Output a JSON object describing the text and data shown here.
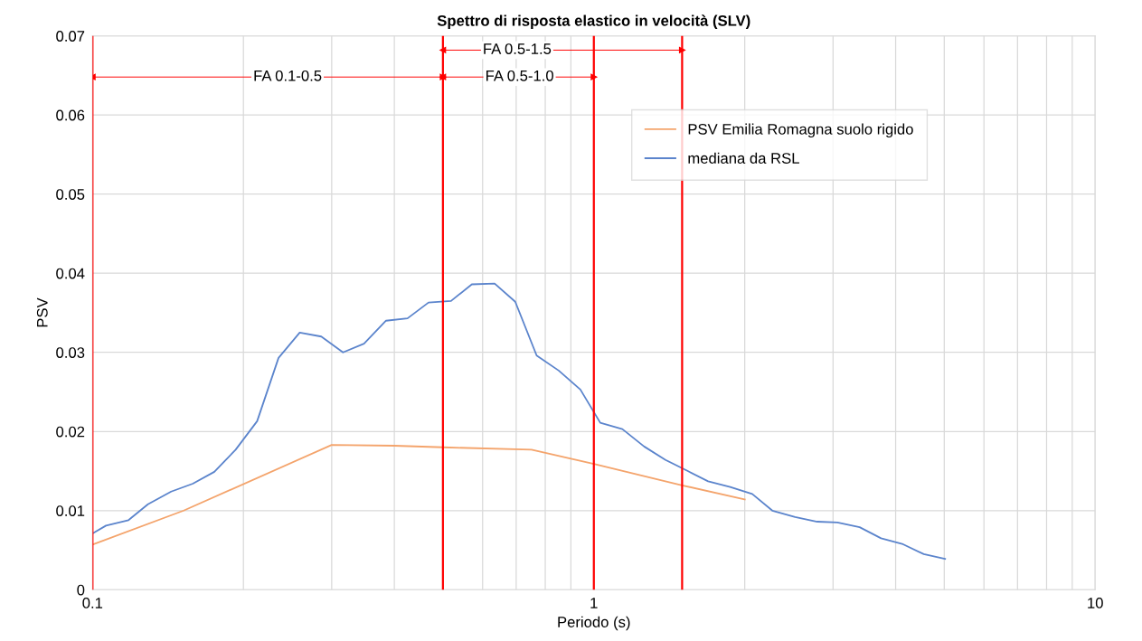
{
  "chart_data": {
    "type": "line",
    "title": "Spettro di risposta elastico in velocità (SLV)",
    "xlabel": "Periodo (s)",
    "ylabel": "PSV",
    "log": "x",
    "xlim": [
      0.1,
      10
    ],
    "xticks": [
      0.1,
      1,
      10
    ],
    "ylim": [
      0,
      0.07
    ],
    "yticks": [
      0,
      0.01,
      0.02,
      0.03,
      0.04,
      0.05,
      0.06,
      0.07
    ],
    "grid": true,
    "legend": "top right",
    "marker": "none",
    "line_style": "solid",
    "series": [
      {
        "name": "PSV Emilia Romagna suolo rigido",
        "color": "#f4a46c",
        "x": [
          0.1,
          0.152,
          0.3,
          0.4,
          0.5,
          0.751,
          1.0,
          1.5,
          2.0
        ],
        "values": [
          0.0057,
          0.01,
          0.0183,
          0.0182,
          0.018,
          0.0177,
          0.0159,
          0.0132,
          0.0114
        ]
      },
      {
        "type": "line",
        "color": "#ff0000",
        "marker": "triangle",
        "x": [
          0.1,
          0.5
        ],
        "values": [
          0.0648,
          0.0648
        ]
      },
      {
        "type": "line",
        "color": "#ff0000",
        "marker": "triangle",
        "x": [
          0.5,
          1.0
        ],
        "values": [
          0.0648,
          0.0648
        ]
      },
      {
        "type": "line",
        "color": "#ff0000",
        "marker": "triangle",
        "x": [
          0.5,
          1.5
        ],
        "values": [
          0.0682,
          0.0682
        ]
      },
      {
        "name": "mediana da RSL",
        "color": "#5b84cc",
        "x": [
          0.1,
          0.1064,
          0.118,
          0.129,
          0.1435,
          0.1585,
          0.175,
          0.193,
          0.213,
          0.235,
          0.259,
          0.286,
          0.316,
          0.348,
          0.385,
          0.425,
          0.468,
          0.519,
          0.571,
          0.634,
          0.697,
          0.769,
          0.851,
          0.94,
          1.03,
          1.14,
          1.26,
          1.39,
          1.54,
          1.69,
          1.87,
          2.07,
          2.27,
          2.52,
          2.79,
          3.06,
          3.39,
          3.74,
          4.12,
          4.55,
          5.02
        ],
        "values": [
          0.0071,
          0.0081,
          0.0088,
          0.0108,
          0.0124,
          0.0134,
          0.0149,
          0.0177,
          0.0213,
          0.0293,
          0.0325,
          0.032,
          0.03,
          0.0311,
          0.034,
          0.0343,
          0.0363,
          0.0365,
          0.0386,
          0.0387,
          0.0364,
          0.0296,
          0.0277,
          0.0253,
          0.0211,
          0.0203,
          0.0181,
          0.0164,
          0.015,
          0.0137,
          0.013,
          0.0121,
          0.01,
          0.0092,
          0.0086,
          0.0085,
          0.0079,
          0.0065,
          0.0058,
          0.0045,
          0.0039
        ]
      }
    ],
    "ref_lines": [
      {
        "axis": "x",
        "value": 0.1,
        "color": "#ff0000"
      },
      {
        "axis": "x",
        "value": 0.5,
        "color": "#ff0000"
      },
      {
        "axis": "x",
        "value": 1.0,
        "color": "#ff0000"
      },
      {
        "axis": "x",
        "value": 1.5,
        "color": "#ff0000"
      }
    ],
    "annotations": [
      {
        "text": "FA 0.1-0.5",
        "x": 0.245,
        "y": 0.0648
      },
      {
        "text": "FA 0.5-1.0",
        "x": 0.711,
        "y": 0.0648
      },
      {
        "text": "FA 0.5-1.5",
        "x": 0.703,
        "y": 0.0682
      }
    ]
  }
}
